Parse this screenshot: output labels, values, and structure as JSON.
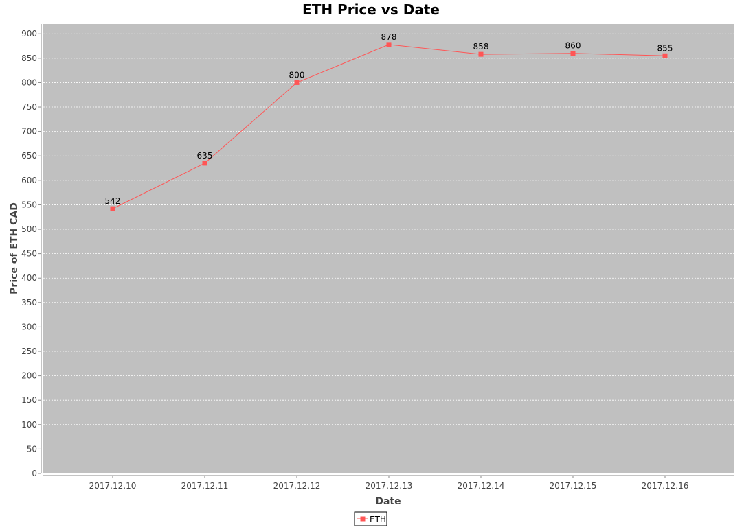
{
  "chart_data": {
    "type": "line",
    "title": "ETH Price vs Date",
    "xlabel": "Date",
    "ylabel": "Price of ETH CAD",
    "categories": [
      "2017.12.10",
      "2017.12.11",
      "2017.12.12",
      "2017.12.13",
      "2017.12.14",
      "2017.12.15",
      "2017.12.16"
    ],
    "series": [
      {
        "name": "ETH",
        "values": [
          542,
          635,
          800,
          878,
          858,
          860,
          855
        ],
        "color": "#ff5555"
      }
    ],
    "ylim": [
      0,
      920
    ],
    "yticks": [
      0,
      50,
      100,
      150,
      200,
      250,
      300,
      350,
      400,
      450,
      500,
      550,
      600,
      650,
      700,
      750,
      800,
      850,
      900
    ],
    "grid": true,
    "legend": "bottom-center",
    "plot_background": "#c0c0c0",
    "gridline_color": "#ffffff"
  }
}
